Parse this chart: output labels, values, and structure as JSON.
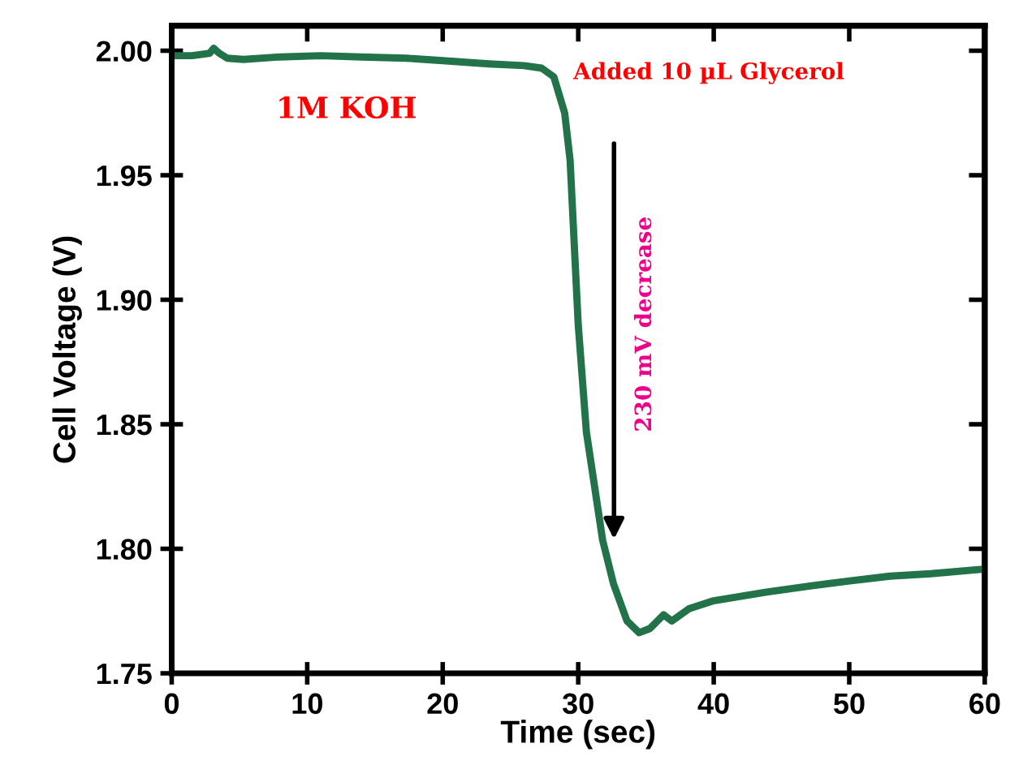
{
  "chart_data": {
    "type": "line",
    "xlabel": "Time (sec)",
    "ylabel": "Cell Voltage (V)",
    "series": [
      {
        "color": "#23734a",
        "x": [
          0,
          1.5,
          2.8,
          3.1,
          3.5,
          4.1,
          5.3,
          8,
          11,
          14,
          17.3,
          20,
          23.4,
          26,
          27.3,
          28.2,
          29.0,
          29.4,
          30.0,
          30.6,
          31.8,
          32.6,
          33.6,
          34.5,
          35.3,
          36.3,
          36.9,
          38.2,
          39.9,
          43.9,
          47,
          49.9,
          53,
          56,
          59.9
        ],
        "values": [
          1.998,
          1.998,
          1.999,
          2.001,
          1.999,
          1.997,
          1.9965,
          1.9975,
          1.998,
          1.9975,
          1.997,
          1.996,
          1.9947,
          1.994,
          1.993,
          1.9895,
          1.975,
          1.956,
          1.89,
          1.847,
          1.8035,
          1.786,
          1.771,
          1.7663,
          1.768,
          1.7735,
          1.771,
          1.776,
          1.779,
          1.7826,
          1.785,
          1.787,
          1.789,
          1.79,
          1.7918
        ]
      }
    ],
    "xlim": [
      0,
      60
    ],
    "xticks": [
      0,
      10,
      20,
      30,
      40,
      50,
      60
    ],
    "ylim": [
      1.75,
      2.01
    ],
    "yticks": [
      {
        "value": 1.75,
        "label": "1.75"
      },
      {
        "value": 1.8,
        "label": "1.80"
      },
      {
        "value": 1.85,
        "label": "1.85"
      },
      {
        "value": 1.9,
        "label": "1.90"
      },
      {
        "value": 1.95,
        "label": "1.95"
      },
      {
        "value": 2.0,
        "label": "2.00"
      }
    ],
    "grid": false,
    "legend": false,
    "marker": "none",
    "line_style": "solid",
    "annotations": [
      "Added 10 µL Glycerol",
      "1M KOH",
      "230 mV decrease"
    ]
  }
}
